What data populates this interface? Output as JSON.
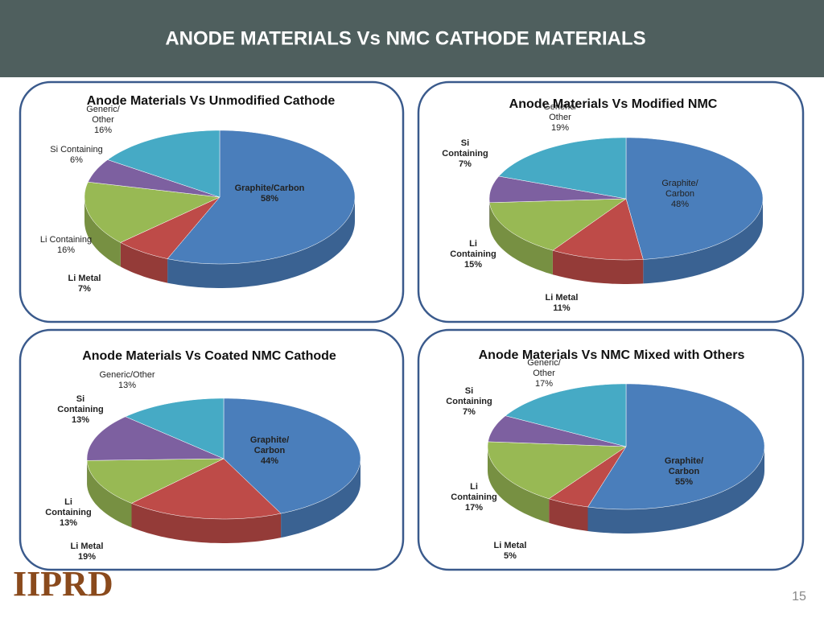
{
  "title": "ANODE MATERIALS Vs NMC CATHODE MATERIALS",
  "page_number": "15",
  "logo": "IIPRD",
  "chart_data": [
    {
      "type": "pie",
      "title": "Anode Materials Vs Unmodified Cathode",
      "categories": [
        "Graphite/Carbon",
        "Li Metal",
        "Li Containing",
        "Si Containing",
        "Generic/ Other"
      ],
      "values": [
        58,
        7,
        16,
        6,
        16
      ],
      "value_labels": [
        "58%",
        "7%",
        "16%",
        "6%",
        "16%"
      ],
      "colors": [
        "#4a7ebb",
        "#be4b48",
        "#98b954",
        "#7d60a0",
        "#46aac5"
      ]
    },
    {
      "type": "pie",
      "title": "Anode Materials Vs Modified NMC",
      "categories": [
        "Graphite/ Carbon",
        "Li Metal",
        "Li Containing",
        "Si Containing",
        "Generic/ Other"
      ],
      "values": [
        48,
        11,
        15,
        7,
        19
      ],
      "value_labels": [
        "48%",
        "11%",
        "15%",
        "7%",
        "19%"
      ],
      "colors": [
        "#4a7ebb",
        "#be4b48",
        "#98b954",
        "#7d60a0",
        "#46aac5"
      ]
    },
    {
      "type": "pie",
      "title": "Anode Materials Vs Coated NMC Cathode",
      "categories": [
        "Graphite/ Carbon",
        "Li Metal",
        "Li Containing",
        "Si Containing",
        "Generic/Other"
      ],
      "values": [
        44,
        19,
        13,
        13,
        13
      ],
      "value_labels": [
        "44%",
        "19%",
        "13%",
        "13%",
        "13%"
      ],
      "colors": [
        "#4a7ebb",
        "#be4b48",
        "#98b954",
        "#7d60a0",
        "#46aac5"
      ]
    },
    {
      "type": "pie",
      "title": "Anode Materials Vs NMC Mixed with Others",
      "categories": [
        "Graphite/ Carbon",
        "Li Metal",
        "Li Containing",
        "Si Containing",
        "Generic/ Other"
      ],
      "values": [
        55,
        5,
        17,
        7,
        17
      ],
      "value_labels": [
        "55%",
        "5%",
        "17%",
        "7%",
        "17%"
      ],
      "colors": [
        "#4a7ebb",
        "#be4b48",
        "#98b954",
        "#7d60a0",
        "#46aac5"
      ]
    }
  ]
}
